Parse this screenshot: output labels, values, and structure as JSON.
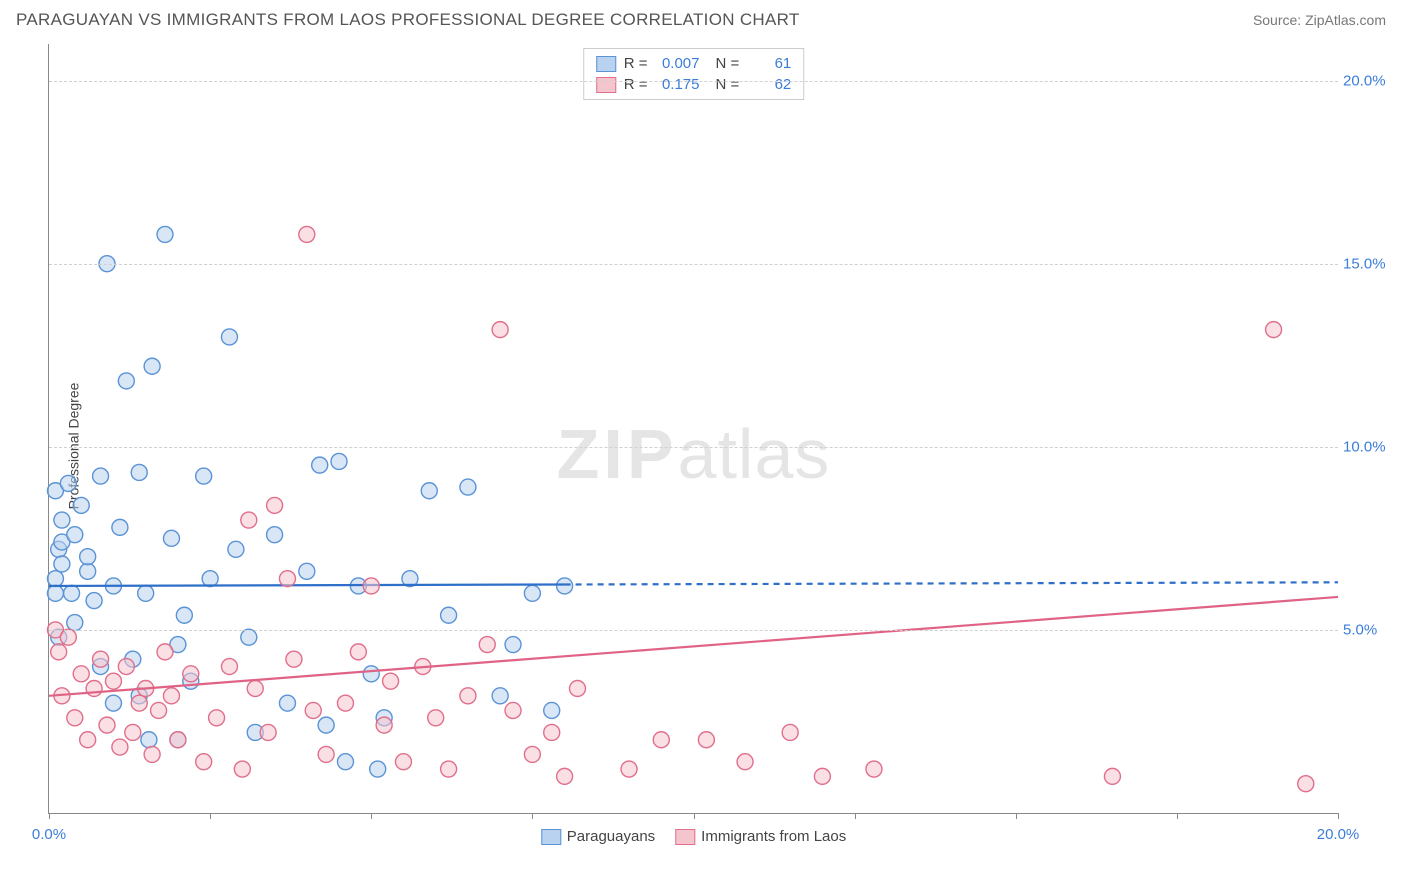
{
  "title": "PARAGUAYAN VS IMMIGRANTS FROM LAOS PROFESSIONAL DEGREE CORRELATION CHART",
  "source": "Source: ZipAtlas.com",
  "watermark_a": "ZIP",
  "watermark_b": "atlas",
  "chart": {
    "type": "scatter",
    "ylabel": "Professional Degree",
    "xlim": [
      0,
      20
    ],
    "ylim": [
      0,
      21
    ],
    "xticks": [
      0,
      2.5,
      5,
      7.5,
      10,
      12.5,
      15,
      17.5,
      20
    ],
    "xtick_labels": {
      "0": "0.0%",
      "20": "20.0%"
    },
    "yticks": [
      5,
      10,
      15,
      20
    ],
    "ytick_labels": [
      "5.0%",
      "10.0%",
      "15.0%",
      "20.0%"
    ],
    "grid_color": "#d5d5d5",
    "axis_color": "#888888",
    "tick_label_color": "#3b7dd8",
    "background_color": "#ffffff",
    "marker_radius": 8,
    "marker_stroke_width": 1.4,
    "line_width": 2.2,
    "series": [
      {
        "name": "Paraguayans",
        "fill": "#b9d2ef",
        "stroke": "#5a93d6",
        "fill_opacity": 0.55,
        "r_label": "R =",
        "r_value": "0.007",
        "n_label": "N =",
        "n_value": "61",
        "trend": {
          "x1": 0,
          "y1": 6.2,
          "x2": 20,
          "y2": 6.3,
          "solid_until_x": 8,
          "color": "#2e6fc9"
        },
        "points": [
          [
            0.1,
            8.8
          ],
          [
            0.1,
            6.4
          ],
          [
            0.1,
            6.0
          ],
          [
            0.15,
            4.8
          ],
          [
            0.15,
            7.2
          ],
          [
            0.2,
            8.0
          ],
          [
            0.2,
            7.4
          ],
          [
            0.2,
            6.8
          ],
          [
            0.3,
            9.0
          ],
          [
            0.35,
            6.0
          ],
          [
            0.4,
            7.6
          ],
          [
            0.4,
            5.2
          ],
          [
            0.5,
            8.4
          ],
          [
            0.6,
            6.6
          ],
          [
            0.6,
            7.0
          ],
          [
            0.7,
            5.8
          ],
          [
            0.8,
            4.0
          ],
          [
            0.8,
            9.2
          ],
          [
            0.9,
            15.0
          ],
          [
            1.0,
            6.2
          ],
          [
            1.0,
            3.0
          ],
          [
            1.1,
            7.8
          ],
          [
            1.2,
            11.8
          ],
          [
            1.3,
            4.2
          ],
          [
            1.4,
            9.3
          ],
          [
            1.4,
            3.2
          ],
          [
            1.5,
            6.0
          ],
          [
            1.55,
            2.0
          ],
          [
            1.6,
            12.2
          ],
          [
            1.8,
            15.8
          ],
          [
            1.9,
            7.5
          ],
          [
            2.0,
            4.6
          ],
          [
            2.0,
            2.0
          ],
          [
            2.1,
            5.4
          ],
          [
            2.2,
            3.6
          ],
          [
            2.4,
            9.2
          ],
          [
            2.5,
            6.4
          ],
          [
            2.8,
            13.0
          ],
          [
            2.9,
            7.2
          ],
          [
            3.1,
            4.8
          ],
          [
            3.2,
            2.2
          ],
          [
            3.5,
            7.6
          ],
          [
            3.7,
            3.0
          ],
          [
            4.0,
            6.6
          ],
          [
            4.2,
            9.5
          ],
          [
            4.3,
            2.4
          ],
          [
            4.5,
            9.6
          ],
          [
            4.6,
            1.4
          ],
          [
            4.8,
            6.2
          ],
          [
            5.0,
            3.8
          ],
          [
            5.1,
            1.2
          ],
          [
            5.2,
            2.6
          ],
          [
            5.6,
            6.4
          ],
          [
            5.9,
            8.8
          ],
          [
            6.2,
            5.4
          ],
          [
            6.5,
            8.9
          ],
          [
            7.0,
            3.2
          ],
          [
            7.2,
            4.6
          ],
          [
            7.5,
            6.0
          ],
          [
            7.8,
            2.8
          ],
          [
            8.0,
            6.2
          ]
        ]
      },
      {
        "name": "Immigrants from Laos",
        "fill": "#f5c5cd",
        "stroke": "#e06f8b",
        "fill_opacity": 0.55,
        "r_label": "R =",
        "r_value": "0.175",
        "n_label": "N =",
        "n_value": "62",
        "trend": {
          "x1": 0,
          "y1": 3.2,
          "x2": 20,
          "y2": 5.9,
          "solid_until_x": 20,
          "color": "#e06385"
        },
        "points": [
          [
            0.1,
            5.0
          ],
          [
            0.15,
            4.4
          ],
          [
            0.2,
            3.2
          ],
          [
            0.3,
            4.8
          ],
          [
            0.4,
            2.6
          ],
          [
            0.5,
            3.8
          ],
          [
            0.6,
            2.0
          ],
          [
            0.7,
            3.4
          ],
          [
            0.8,
            4.2
          ],
          [
            0.9,
            2.4
          ],
          [
            1.0,
            3.6
          ],
          [
            1.1,
            1.8
          ],
          [
            1.2,
            4.0
          ],
          [
            1.3,
            2.2
          ],
          [
            1.4,
            3.0
          ],
          [
            1.5,
            3.4
          ],
          [
            1.6,
            1.6
          ],
          [
            1.7,
            2.8
          ],
          [
            1.8,
            4.4
          ],
          [
            1.9,
            3.2
          ],
          [
            2.0,
            2.0
          ],
          [
            2.2,
            3.8
          ],
          [
            2.4,
            1.4
          ],
          [
            2.6,
            2.6
          ],
          [
            2.8,
            4.0
          ],
          [
            3.0,
            1.2
          ],
          [
            3.1,
            8.0
          ],
          [
            3.2,
            3.4
          ],
          [
            3.4,
            2.2
          ],
          [
            3.5,
            8.4
          ],
          [
            3.7,
            6.4
          ],
          [
            3.8,
            4.2
          ],
          [
            4.0,
            15.8
          ],
          [
            4.1,
            2.8
          ],
          [
            4.3,
            1.6
          ],
          [
            4.6,
            3.0
          ],
          [
            4.8,
            4.4
          ],
          [
            5.0,
            6.2
          ],
          [
            5.2,
            2.4
          ],
          [
            5.3,
            3.6
          ],
          [
            5.5,
            1.4
          ],
          [
            5.8,
            4.0
          ],
          [
            6.0,
            2.6
          ],
          [
            6.2,
            1.2
          ],
          [
            6.5,
            3.2
          ],
          [
            6.8,
            4.6
          ],
          [
            7.0,
            13.2
          ],
          [
            7.2,
            2.8
          ],
          [
            7.5,
            1.6
          ],
          [
            7.8,
            2.2
          ],
          [
            8.0,
            1.0
          ],
          [
            8.2,
            3.4
          ],
          [
            9.0,
            1.2
          ],
          [
            9.5,
            2.0
          ],
          [
            10.2,
            2.0
          ],
          [
            10.8,
            1.4
          ],
          [
            11.5,
            2.2
          ],
          [
            12.0,
            1.0
          ],
          [
            12.8,
            1.2
          ],
          [
            16.5,
            1.0
          ],
          [
            19.0,
            13.2
          ],
          [
            19.5,
            0.8
          ]
        ]
      }
    ]
  },
  "legend_bottom": [
    {
      "label": "Paraguayans",
      "fill": "#b9d2ef",
      "stroke": "#5a93d6"
    },
    {
      "label": "Immigrants from Laos",
      "fill": "#f5c5cd",
      "stroke": "#e06f8b"
    }
  ]
}
